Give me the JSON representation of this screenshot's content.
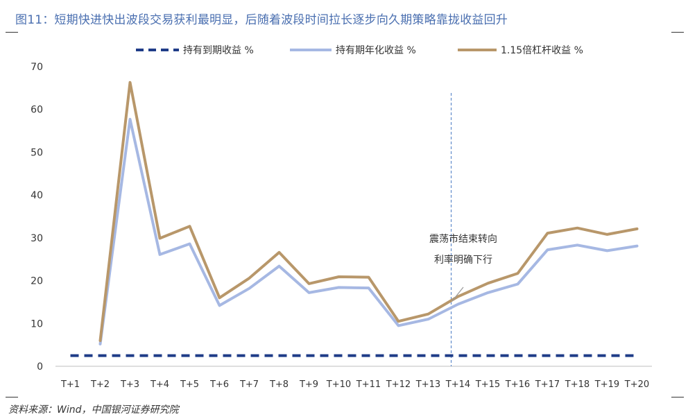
{
  "title": "图11：短期快进快出波段交易获利最明显，后随着波段时间拉长逐步向久期策略靠拢收益回升",
  "source": "资料来源：Wind，中国银河证券研究院",
  "chart_data": {
    "type": "line",
    "categories": [
      "T+1",
      "T+2",
      "T+3",
      "T+4",
      "T+5",
      "T+6",
      "T+7",
      "T+8",
      "T+9",
      "T+10",
      "T+11",
      "T+12",
      "T+13",
      "T+14",
      "T+15",
      "T+16",
      "T+17",
      "T+18",
      "T+19",
      "T+20"
    ],
    "ylim": [
      0,
      70
    ],
    "yticks": [
      0,
      10,
      20,
      30,
      40,
      50,
      60,
      70
    ],
    "legend_position": "top",
    "series": [
      {
        "name": "持有到期收益 %",
        "color": "#1f3c88",
        "style": "dashed",
        "values": [
          2.5,
          2.5,
          2.5,
          2.5,
          2.5,
          2.5,
          2.5,
          2.5,
          2.5,
          2.5,
          2.5,
          2.5,
          2.5,
          2.5,
          2.5,
          2.5,
          2.5,
          2.5,
          2.5,
          2.5
        ]
      },
      {
        "name": "持有期年化收益 %",
        "color": "#a6b8e3",
        "style": "solid",
        "values": [
          null,
          5.2,
          57.7,
          26.1,
          28.6,
          14.2,
          18.2,
          23.4,
          17.2,
          18.4,
          18.3,
          9.5,
          11.0,
          14.5,
          17.2,
          19.2,
          27.2,
          28.3,
          27.0,
          28.1
        ]
      },
      {
        "name": "1.15倍杠杆收益 %",
        "color": "#b8976a",
        "style": "solid",
        "values": [
          null,
          6.0,
          66.3,
          29.9,
          32.7,
          16.0,
          20.6,
          26.6,
          19.3,
          20.9,
          20.8,
          10.5,
          12.2,
          16.3,
          19.4,
          21.7,
          31.1,
          32.3,
          30.8,
          32.1
        ]
      }
    ],
    "annotation": {
      "lines": [
        "震荡市结束转向",
        "利率明确下行"
      ],
      "x_category": "T+14"
    }
  }
}
